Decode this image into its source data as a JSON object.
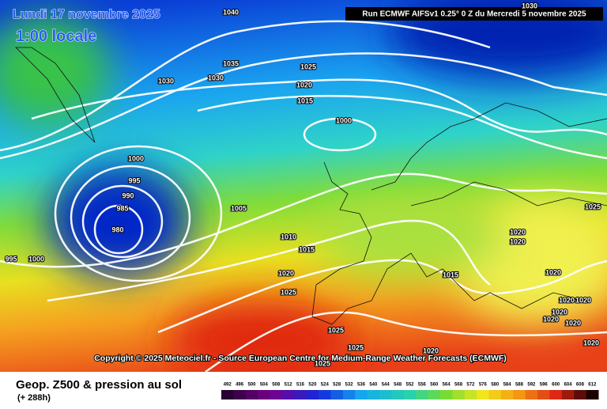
{
  "header": {
    "date": "Lundi 17 novembre 2025",
    "time": "1:00 locale",
    "run": "Run ECMWF AIFSv1 0.25° 0 Z du Mercredi 5 novembre 2025"
  },
  "copyright": "Copyright © 2025 Meteociel.fr - Source European Centre for Medium-Range Weather Forecasts (ECMWF)",
  "footer": {
    "title": "Geop. Z500 & pression au sol",
    "lead": "(+ 288h)"
  },
  "legend": {
    "values": [
      492,
      496,
      500,
      504,
      508,
      512,
      516,
      520,
      524,
      528,
      532,
      536,
      540,
      544,
      548,
      552,
      556,
      560,
      564,
      568,
      572,
      576,
      580,
      584,
      588,
      592,
      596,
      600,
      604,
      608,
      612
    ]
  },
  "isobars": [
    "1040",
    "1030",
    "1035",
    "1030",
    "1030",
    "1025",
    "1020",
    "1015",
    "1000",
    "1000",
    "995",
    "990",
    "985",
    "980",
    "1005",
    "1010",
    "1015",
    "1020",
    "1025",
    "1025",
    "1020",
    "1020",
    "1020",
    "1015",
    "1020",
    "1020",
    "1020",
    "1020",
    "1020",
    "1025",
    "1025",
    "1020",
    "1025",
    "1020",
    "995",
    "1000"
  ]
}
